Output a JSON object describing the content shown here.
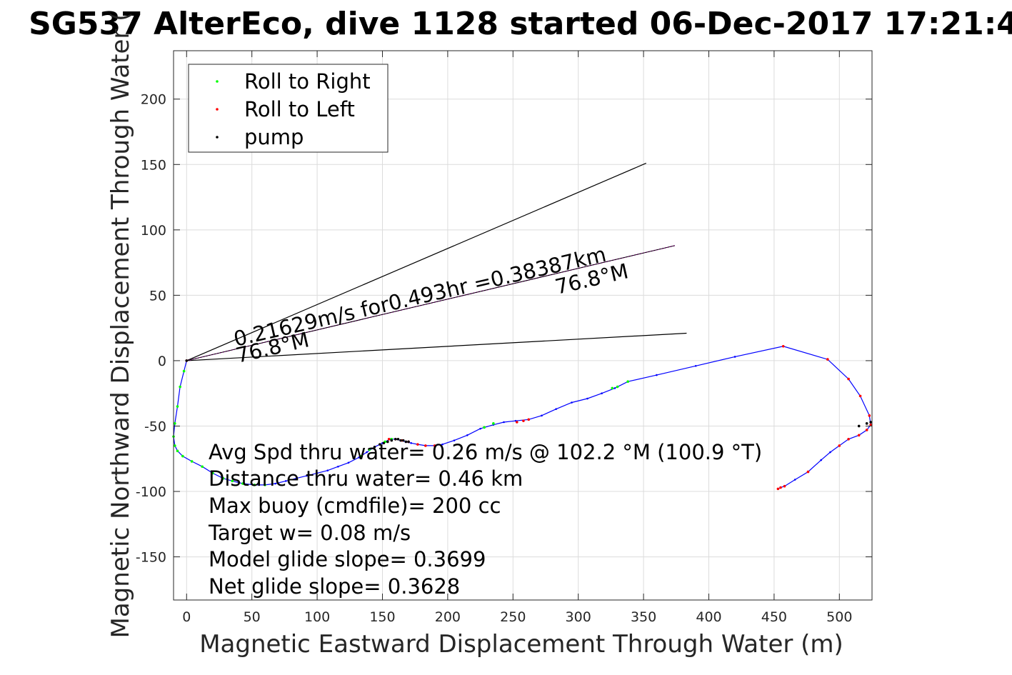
{
  "chart_data": {
    "type": "scatter",
    "title": "SG537 AlterEco, dive 1128 started 06-Dec-2017 17:21:4",
    "xlabel": "Magnetic Eastward Displacement Through Water (m)",
    "ylabel": "Magnetic Northward Displacement Through Water (",
    "xlim": [
      -10,
      525
    ],
    "ylim": [
      -183,
      237
    ],
    "xticks": [
      0,
      50,
      100,
      150,
      200,
      250,
      300,
      350,
      400,
      450,
      500
    ],
    "yticks": [
      -150,
      -100,
      -50,
      0,
      50,
      100,
      150,
      200
    ],
    "xtick_labels": [
      "0",
      "50",
      "100",
      "150",
      "200",
      "250",
      "300",
      "350",
      "400",
      "450",
      "500"
    ],
    "ytick_labels": [
      "-150",
      "-100",
      "-50",
      "0",
      "50",
      "100",
      "150",
      "200"
    ],
    "grid": true,
    "legend": {
      "position": "top-left",
      "entries": [
        {
          "label": "Roll to Right",
          "color": "#00ff00"
        },
        {
          "label": "Roll to Left",
          "color": "#ff0000"
        },
        {
          "label": "pump",
          "color": "#000000"
        }
      ]
    },
    "colors": {
      "track": "#0000ff",
      "heading_line": "#000000",
      "mean_line": "#ff00ff"
    },
    "heading_lines": [
      {
        "x": [
          0,
          352
        ],
        "y": [
          0,
          151
        ]
      },
      {
        "x": [
          0,
          383
        ],
        "y": [
          0,
          21
        ]
      }
    ],
    "mean_line": {
      "x": [
        0,
        374
      ],
      "y": [
        0,
        88
      ]
    },
    "track": {
      "x": [
        0,
        -2,
        -5,
        -7,
        -9,
        -10,
        -9,
        -7,
        -3,
        4,
        12,
        20,
        28,
        35,
        43,
        52,
        60,
        68,
        76,
        84,
        92,
        100,
        108,
        116,
        124,
        132,
        138,
        144,
        150,
        156,
        160,
        164,
        168,
        172,
        177,
        183,
        190,
        196,
        205,
        215,
        225,
        235,
        243,
        252,
        262,
        272,
        283,
        295,
        307,
        318,
        328,
        338,
        360,
        390,
        420,
        457,
        491,
        507,
        516,
        523,
        524,
        521,
        515,
        507,
        500,
        493,
        486,
        476,
        466,
        458,
        455,
        453
      ],
      "y": [
        0,
        -8,
        -20,
        -35,
        -48,
        -58,
        -65,
        -69,
        -73,
        -77,
        -81,
        -86,
        -90,
        -92,
        -94,
        -95,
        -95,
        -94,
        -92,
        -90,
        -88,
        -86,
        -84,
        -81,
        -78,
        -74,
        -70,
        -66,
        -63,
        -60,
        -60,
        -61,
        -62,
        -63,
        -64,
        -65,
        -65,
        -64,
        -61,
        -57,
        -52,
        -49,
        -47,
        -46,
        -45,
        -42,
        -37,
        -32,
        -29,
        -25,
        -21,
        -16,
        -11,
        -4,
        3,
        11,
        1,
        -14,
        -27,
        -42,
        -49,
        -53,
        -57,
        -60,
        -65,
        -70,
        -76,
        -85,
        -91,
        -96,
        -97,
        -98
      ]
    },
    "roll_right": {
      "x": [
        -2,
        -5,
        -7,
        -9,
        -10,
        -9,
        -7,
        -3,
        4,
        12,
        20,
        28,
        35,
        43,
        52,
        60,
        134,
        140,
        152,
        157,
        228,
        235,
        326,
        330,
        338
      ],
      "y": [
        -8,
        -20,
        -35,
        -48,
        -58,
        -65,
        -69,
        -73,
        -77,
        -81,
        -86,
        -90,
        -92,
        -94,
        -95,
        -95,
        -73,
        -68,
        -62,
        -60,
        -51,
        -48,
        -21,
        -20,
        -16
      ]
    },
    "roll_left": {
      "x": [
        0,
        155,
        160,
        165,
        170,
        177,
        183,
        190,
        253,
        258,
        262,
        457,
        491,
        507,
        516,
        523,
        524,
        521,
        515,
        507,
        500,
        476,
        458,
        455,
        453
      ],
      "y": [
        0,
        -60,
        -60,
        -61,
        -62,
        -64,
        -65,
        -65,
        -47,
        -46,
        -45,
        11,
        1,
        -14,
        -27,
        -42,
        -49,
        -53,
        -57,
        -60,
        -65,
        -85,
        -96,
        -97,
        -98
      ]
    },
    "pump": {
      "x": [
        0,
        144,
        148,
        151,
        154,
        157,
        160,
        162,
        164,
        166,
        168,
        170,
        515,
        521,
        524
      ],
      "y": [
        0,
        -66,
        -64,
        -63,
        -62,
        -61,
        -60,
        -60,
        -61,
        -61,
        -62,
        -62,
        -50,
        -48,
        -47
      ]
    },
    "annotations": {
      "mean_label": "0.21629m/s for0.493hr =0.38387km",
      "heading_label_end": "76.8°M",
      "heading_label_start": "76.8°M"
    },
    "stats": [
      "Avg Spd thru water=  0.26 m/s @ 102.2 °M (100.9 °T)",
      "Distance thru water=  0.46 km",
      "Max buoy (cmdfile)= 200 cc",
      "Target w= 0.08 m/s",
      "Model glide slope= 0.3699",
      "Net glide slope= 0.3628"
    ]
  }
}
